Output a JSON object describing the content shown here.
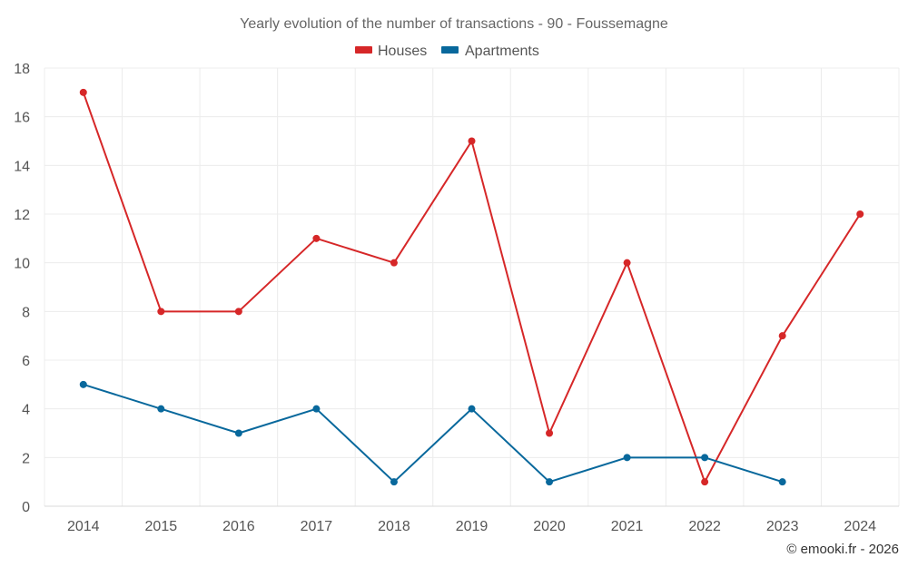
{
  "chart_data": {
    "type": "line",
    "title": "Yearly evolution of the number of transactions - 90 - Foussemagne",
    "categories": [
      "2014",
      "2015",
      "2016",
      "2017",
      "2018",
      "2019",
      "2020",
      "2021",
      "2022",
      "2023",
      "2024"
    ],
    "series": [
      {
        "name": "Houses",
        "color": "#d62728",
        "values": [
          17,
          8,
          8,
          11,
          10,
          15,
          3,
          10,
          1,
          7,
          12
        ]
      },
      {
        "name": "Apartments",
        "color": "#08689c",
        "values": [
          5,
          4,
          3,
          4,
          1,
          4,
          1,
          2,
          2,
          1,
          null
        ]
      }
    ],
    "ylim": [
      0,
      18
    ],
    "yticks": [
      0,
      2,
      4,
      6,
      8,
      10,
      12,
      14,
      16,
      18
    ],
    "xlabel": "",
    "ylabel": "",
    "grid": true,
    "legend": "top-center"
  },
  "credit": "© emooki.fr - 2026"
}
